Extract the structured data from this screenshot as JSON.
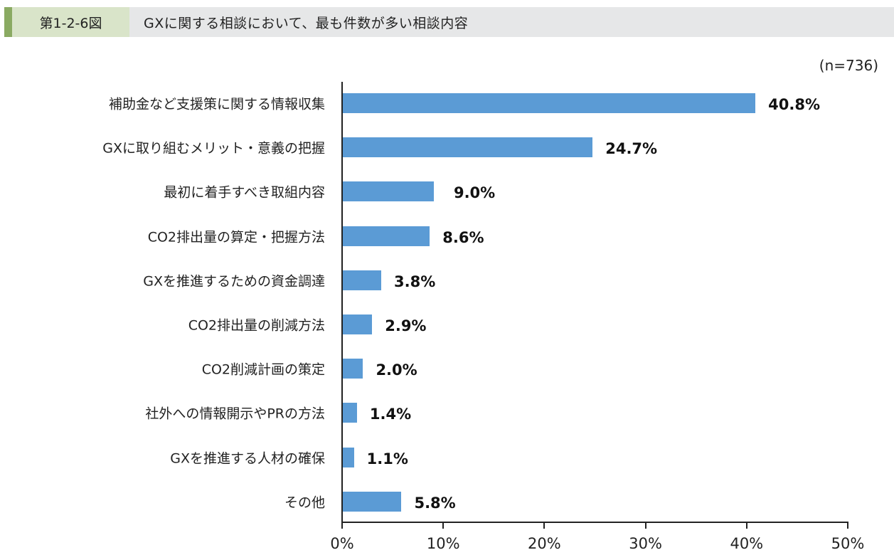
{
  "header": {
    "figure_number": "第1-2-6図",
    "title": "GXに関する相談において、最も件数が多い相談内容"
  },
  "sample_size": "(n=736)",
  "colors": {
    "bar": "#5b9bd5",
    "header_accent": "#8aaa62",
    "header_num_bg": "#d9e4c9",
    "header_bg": "#e6e7e8"
  },
  "chart_data": {
    "type": "bar",
    "orientation": "horizontal",
    "title": "GXに関する相談において、最も件数が多い相談内容",
    "subtitle": "(n=736)",
    "categories": [
      "補助金など支援策に関する情報収集",
      "GXに取り組むメリット・意義の把握",
      "最初に着手すべき取組内容",
      "CO2排出量の算定・把握方法",
      "GXを推進するための資金調達",
      "CO2排出量の削減方法",
      "CO2削減計画の策定",
      "社外への情報開示やPRの方法",
      "GXを推進する人材の確保",
      "その他"
    ],
    "values": [
      40.8,
      24.7,
      9.0,
      8.6,
      3.8,
      2.9,
      2.0,
      1.4,
      1.1,
      5.8
    ],
    "value_labels": [
      "40.8%",
      "24.7%",
      "9.0%",
      "8.6%",
      "3.8%",
      "2.9%",
      "2.0%",
      "1.4%",
      "1.1%",
      "5.8%"
    ],
    "xlabel": "",
    "ylabel": "",
    "xlim": [
      0,
      50
    ],
    "x_ticks": [
      "0%",
      "10%",
      "20%",
      "30%",
      "40%",
      "50%"
    ],
    "grid": false,
    "legend": null
  }
}
